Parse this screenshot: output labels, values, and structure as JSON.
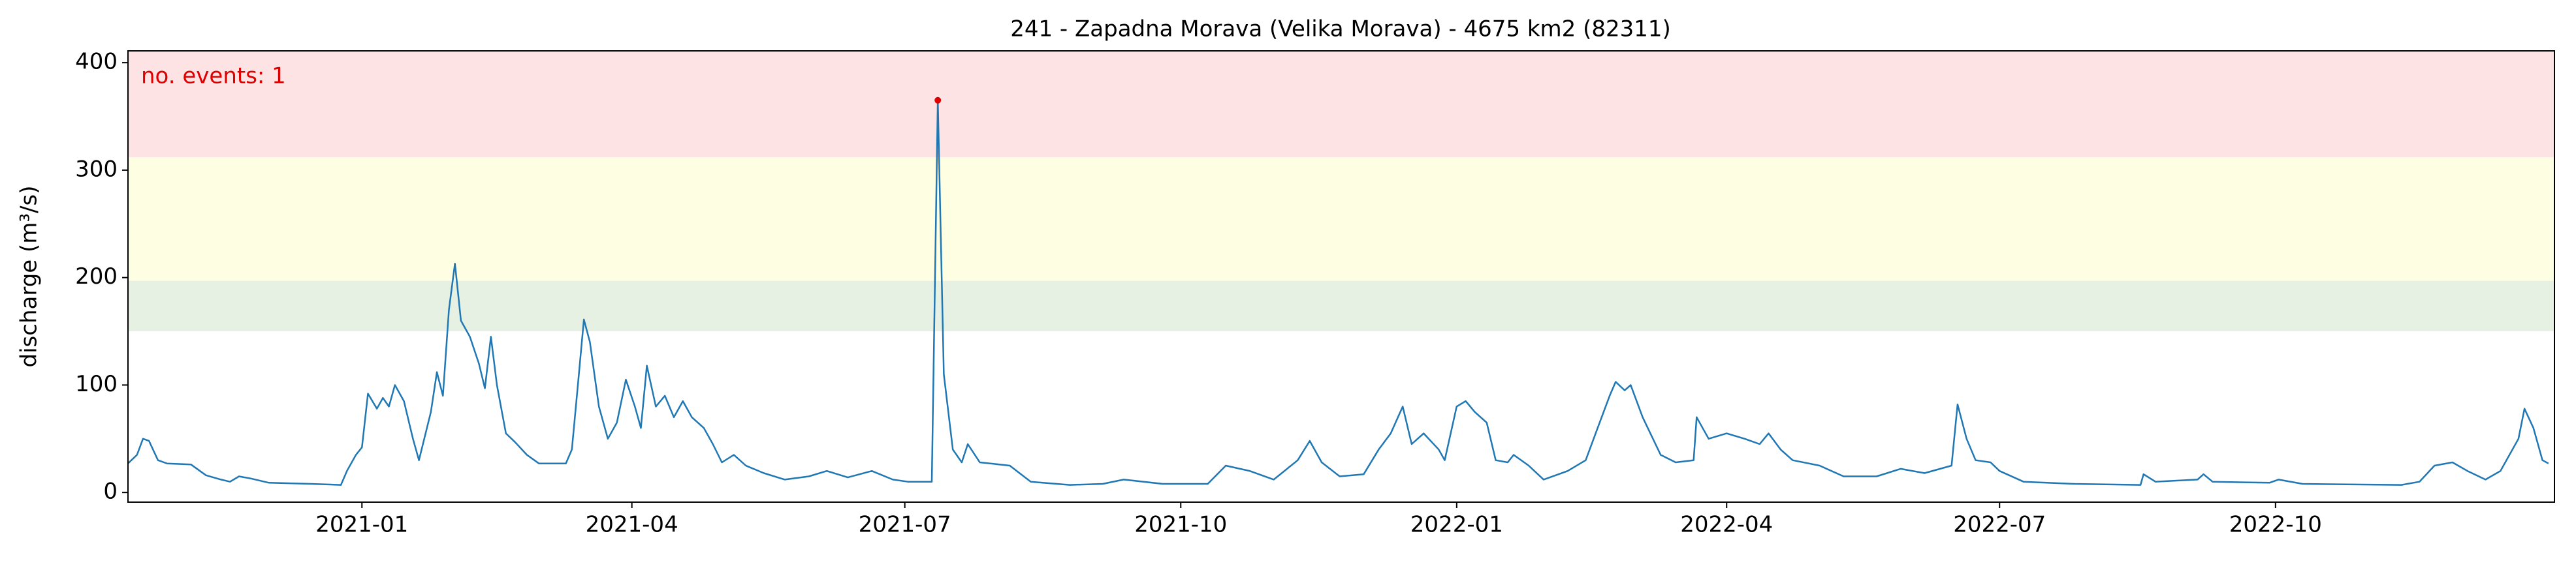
{
  "chart_data": {
    "type": "line",
    "title": "241 - Zapadna Morava (Velika Morava) - 4675 km2 (82311)",
    "y_label": "discharge (m³/s)",
    "annotation": "no. events: 1",
    "annotation_color": "#e00000",
    "event_color": "#e00000",
    "line_color": "#1f77b4",
    "xlim": [
      "2020-10-15",
      "2023-01-02"
    ],
    "xticks": [
      "2021-01",
      "2021-04",
      "2021-07",
      "2021-10",
      "2022-01",
      "2022-04",
      "2022-07",
      "2022-10"
    ],
    "ylim": [
      -9,
      411
    ],
    "yticks": [
      0,
      100,
      200,
      300,
      400
    ],
    "bands": [
      {
        "from": 150,
        "to": 197,
        "color": "#e6f0e3"
      },
      {
        "from": 197,
        "to": 312,
        "color": "#fefee3"
      },
      {
        "from": 312,
        "to": 411,
        "color": "#fee3e5"
      }
    ],
    "x": [
      "2020-10-15",
      "2020-10-18",
      "2020-10-20",
      "2020-10-22",
      "2020-10-25",
      "2020-10-28",
      "2020-11-05",
      "2020-11-10",
      "2020-11-15",
      "2020-11-18",
      "2020-11-21",
      "2020-11-25",
      "2020-12-01",
      "2020-12-15",
      "2020-12-25",
      "2020-12-27",
      "2020-12-30",
      "2021-01-01",
      "2021-01-03",
      "2021-01-06",
      "2021-01-08",
      "2021-01-10",
      "2021-01-12",
      "2021-01-15",
      "2021-01-18",
      "2021-01-20",
      "2021-01-24",
      "2021-01-26",
      "2021-01-28",
      "2021-01-30",
      "2021-02-01",
      "2021-02-03",
      "2021-02-06",
      "2021-02-09",
      "2021-02-11",
      "2021-02-13",
      "2021-02-15",
      "2021-02-18",
      "2021-02-21",
      "2021-02-25",
      "2021-03-01",
      "2021-03-10",
      "2021-03-12",
      "2021-03-14",
      "2021-03-16",
      "2021-03-18",
      "2021-03-21",
      "2021-03-24",
      "2021-03-27",
      "2021-03-30",
      "2021-04-02",
      "2021-04-04",
      "2021-04-06",
      "2021-04-09",
      "2021-04-12",
      "2021-04-15",
      "2021-04-18",
      "2021-04-21",
      "2021-04-25",
      "2021-04-28",
      "2021-05-01",
      "2021-05-05",
      "2021-05-09",
      "2021-05-15",
      "2021-05-22",
      "2021-05-30",
      "2021-06-05",
      "2021-06-12",
      "2021-06-20",
      "2021-06-27",
      "2021-07-02",
      "2021-07-10",
      "2021-07-12",
      "2021-07-14",
      "2021-07-17",
      "2021-07-20",
      "2021-07-22",
      "2021-07-26",
      "2021-08-05",
      "2021-08-12",
      "2021-08-25",
      "2021-09-05",
      "2021-09-12",
      "2021-09-25",
      "2021-10-10",
      "2021-10-16",
      "2021-10-24",
      "2021-11-01",
      "2021-11-09",
      "2021-11-13",
      "2021-11-17",
      "2021-11-23",
      "2021-12-01",
      "2021-12-06",
      "2021-12-10",
      "2021-12-14",
      "2021-12-17",
      "2021-12-21",
      "2021-12-26",
      "2021-12-28",
      "2022-01-01",
      "2022-01-04",
      "2022-01-07",
      "2022-01-11",
      "2022-01-14",
      "2022-01-18",
      "2022-01-20",
      "2022-01-25",
      "2022-01-30",
      "2022-02-07",
      "2022-02-13",
      "2022-02-17",
      "2022-02-21",
      "2022-02-23",
      "2022-02-26",
      "2022-02-28",
      "2022-03-04",
      "2022-03-10",
      "2022-03-15",
      "2022-03-21",
      "2022-03-22",
      "2022-03-26",
      "2022-04-01",
      "2022-04-07",
      "2022-04-12",
      "2022-04-15",
      "2022-04-19",
      "2022-04-23",
      "2022-05-02",
      "2022-05-10",
      "2022-05-21",
      "2022-05-29",
      "2022-06-06",
      "2022-06-15",
      "2022-06-17",
      "2022-06-20",
      "2022-06-23",
      "2022-06-28",
      "2022-07-01",
      "2022-07-09",
      "2022-07-26",
      "2022-08-17",
      "2022-08-18",
      "2022-08-22",
      "2022-09-05",
      "2022-09-07",
      "2022-09-10",
      "2022-09-29",
      "2022-10-02",
      "2022-10-10",
      "2022-11-12",
      "2022-11-18",
      "2022-11-23",
      "2022-11-29",
      "2022-12-04",
      "2022-12-10",
      "2022-12-15",
      "2022-12-21",
      "2022-12-23",
      "2022-12-26",
      "2022-12-29",
      "2022-12-31"
    ],
    "values": [
      27,
      35,
      50,
      48,
      30,
      27,
      26,
      16,
      12,
      10,
      15,
      13,
      9,
      8,
      7,
      20,
      35,
      42,
      92,
      78,
      88,
      80,
      100,
      85,
      50,
      30,
      75,
      112,
      90,
      170,
      213,
      160,
      145,
      120,
      97,
      145,
      100,
      55,
      47,
      35,
      27,
      27,
      40,
      100,
      161,
      140,
      80,
      50,
      65,
      105,
      80,
      60,
      118,
      80,
      90,
      70,
      85,
      70,
      60,
      45,
      28,
      35,
      25,
      18,
      12,
      15,
      20,
      14,
      20,
      12,
      10,
      10,
      365,
      110,
      40,
      28,
      45,
      28,
      25,
      10,
      7,
      8,
      12,
      8,
      8,
      25,
      20,
      12,
      30,
      48,
      28,
      15,
      17,
      40,
      55,
      80,
      45,
      55,
      40,
      30,
      80,
      85,
      75,
      65,
      30,
      28,
      35,
      25,
      12,
      20,
      30,
      60,
      90,
      103,
      95,
      100,
      70,
      35,
      28,
      30,
      70,
      50,
      55,
      50,
      45,
      55,
      40,
      30,
      25,
      15,
      15,
      22,
      18,
      25,
      82,
      50,
      30,
      28,
      20,
      10,
      8,
      7,
      17,
      10,
      12,
      17,
      10,
      9,
      12,
      8,
      7,
      10,
      25,
      28,
      20,
      12,
      20,
      50,
      78,
      60,
      30,
      27
    ]
  }
}
